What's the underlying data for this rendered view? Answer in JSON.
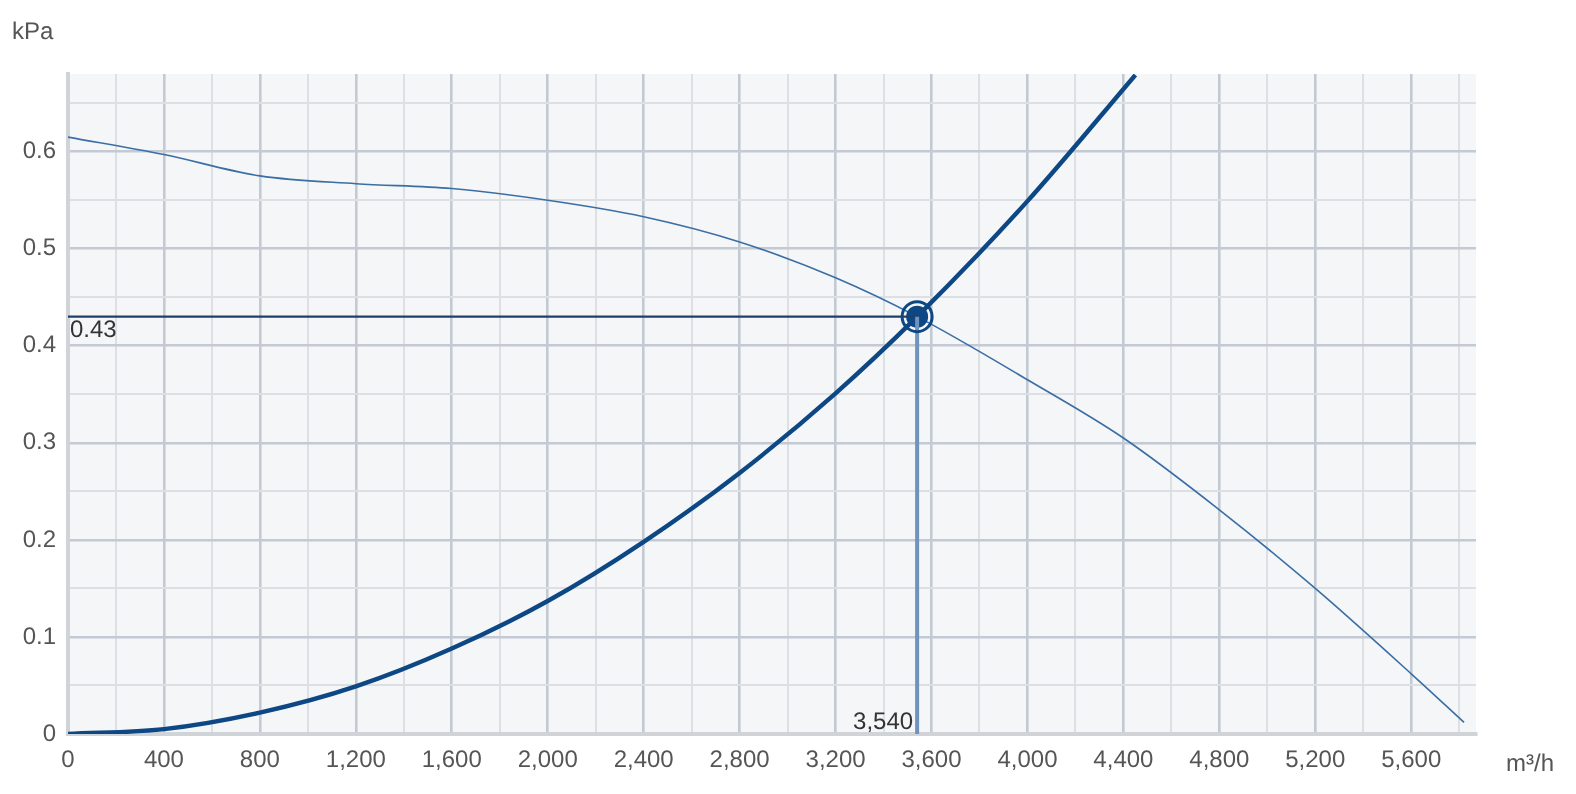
{
  "chart_data": {
    "type": "line",
    "xlabel": "m³/h",
    "ylabel": "kPa",
    "xlim": [
      0,
      5870
    ],
    "ylim": [
      0,
      0.68
    ],
    "xticks": [
      0,
      {
        "value": 200,
        "label": null
      },
      400,
      {
        "value": 600,
        "label": null
      },
      800,
      {
        "value": 1000,
        "label": null
      },
      {
        "value": 1200,
        "label": "1,200"
      },
      {
        "value": 1400,
        "label": null
      },
      {
        "value": 1600,
        "label": "1,600"
      },
      {
        "value": 1800,
        "label": null
      },
      {
        "value": 2000,
        "label": "2,000"
      },
      {
        "value": 2200,
        "label": null
      },
      {
        "value": 2400,
        "label": "2,400"
      },
      {
        "value": 2600,
        "label": null
      },
      {
        "value": 2800,
        "label": "2,800"
      },
      {
        "value": 3000,
        "label": null
      },
      {
        "value": 3200,
        "label": "3,200"
      },
      {
        "value": 3400,
        "label": null
      },
      {
        "value": 3600,
        "label": "3,600"
      },
      {
        "value": 3800,
        "label": null
      },
      {
        "value": 4000,
        "label": "4,000"
      },
      {
        "value": 4200,
        "label": null
      },
      {
        "value": 4400,
        "label": "4,400"
      },
      {
        "value": 4600,
        "label": null
      },
      {
        "value": 4800,
        "label": "4,800"
      },
      {
        "value": 5000,
        "label": null
      },
      {
        "value": 5200,
        "label": "5,200"
      },
      {
        "value": 5400,
        "label": null
      },
      {
        "value": 5600,
        "label": "5,600"
      },
      {
        "value": 5800,
        "label": null
      }
    ],
    "yticks": [
      0,
      {
        "value": 0.05,
        "label": null
      },
      0.1,
      {
        "value": 0.15,
        "label": null
      },
      0.2,
      {
        "value": 0.25,
        "label": null
      },
      0.3,
      {
        "value": 0.35,
        "label": null
      },
      0.4,
      {
        "value": 0.45,
        "label": null
      },
      0.5,
      {
        "value": 0.55,
        "label": null
      },
      0.6,
      {
        "value": 0.65,
        "label": null
      }
    ],
    "grid": true,
    "legend": false,
    "series": [
      {
        "color": "#3a6ea5",
        "x": [
          0,
          400,
          800,
          1200,
          1600,
          2000,
          2400,
          2800,
          3200,
          3540,
          4000,
          4400,
          4800,
          5200,
          5600,
          5820
        ],
        "values": [
          0.615,
          0.597,
          0.575,
          0.567,
          0.562,
          0.55,
          0.533,
          0.507,
          0.47,
          0.43,
          0.365,
          0.305,
          0.231,
          0.15,
          0.062,
          0.012
        ]
      },
      {
        "color": "#0d4784",
        "x": [
          0,
          400,
          800,
          1200,
          1600,
          2000,
          2400,
          2800,
          3200,
          3540,
          4000,
          4450
        ],
        "values": [
          0,
          0.005,
          0.022,
          0.049,
          0.088,
          0.137,
          0.198,
          0.269,
          0.351,
          0.43,
          0.549,
          0.679
        ]
      },
      {
        "type": "scatter",
        "color": "#0d4784",
        "marker": "circle",
        "x": [
          3540
        ],
        "values": [
          0.43
        ]
      }
    ],
    "ref_lines": [
      {
        "axis": "y",
        "value": 0.43,
        "label": "0.43",
        "color": "#1f3f6a"
      },
      {
        "axis": "x",
        "value": 3540,
        "label": "3,540",
        "color": "#6f93bd"
      }
    ]
  }
}
